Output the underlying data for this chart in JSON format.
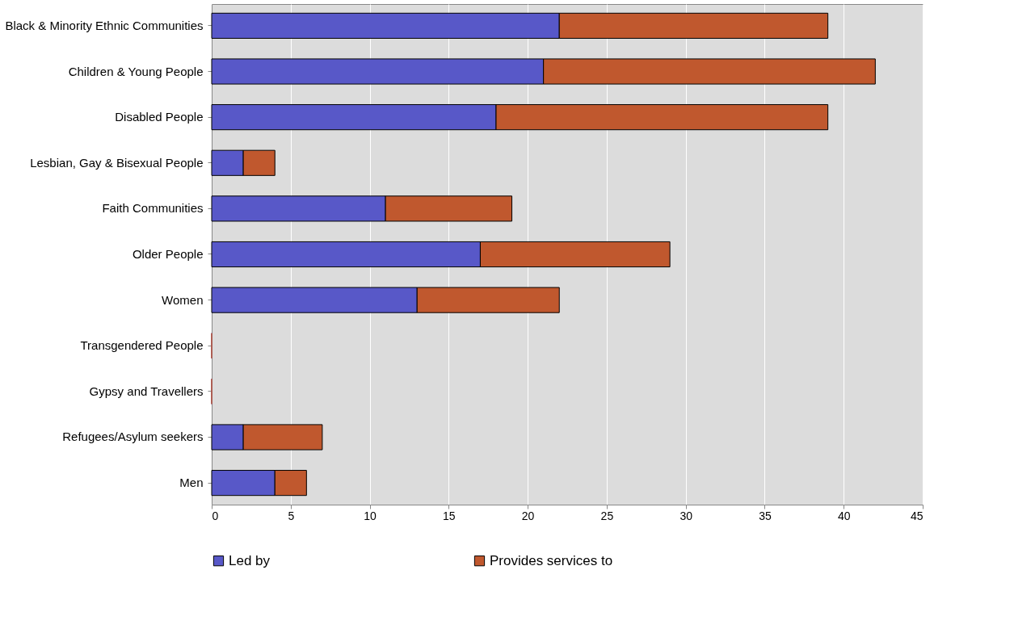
{
  "chart_data": {
    "type": "bar",
    "orientation": "horizontal",
    "stacked": true,
    "categories": [
      "Black & Minority Ethnic Communities",
      "Children & Young People",
      "Disabled People",
      "Lesbian, Gay & Bisexual People",
      "Faith Communities",
      "Older People",
      "Women",
      "Transgendered People",
      "Gypsy and Travellers",
      "Refugees/Asylum seekers",
      "Men"
    ],
    "series": [
      {
        "name": "Led by",
        "color": "#5858c8",
        "values": [
          22,
          21,
          18,
          2,
          11,
          17,
          13,
          0,
          0,
          2,
          4
        ]
      },
      {
        "name": "Provides services to",
        "color": "#c0582e",
        "values": [
          17,
          21,
          21,
          2,
          8,
          12,
          9,
          0,
          0,
          5,
          2
        ]
      }
    ],
    "xlim": [
      0,
      45
    ],
    "xticks": [
      0,
      5,
      10,
      15,
      20,
      25,
      30,
      35,
      40,
      45
    ],
    "grid": "x",
    "legend": "bottom"
  }
}
